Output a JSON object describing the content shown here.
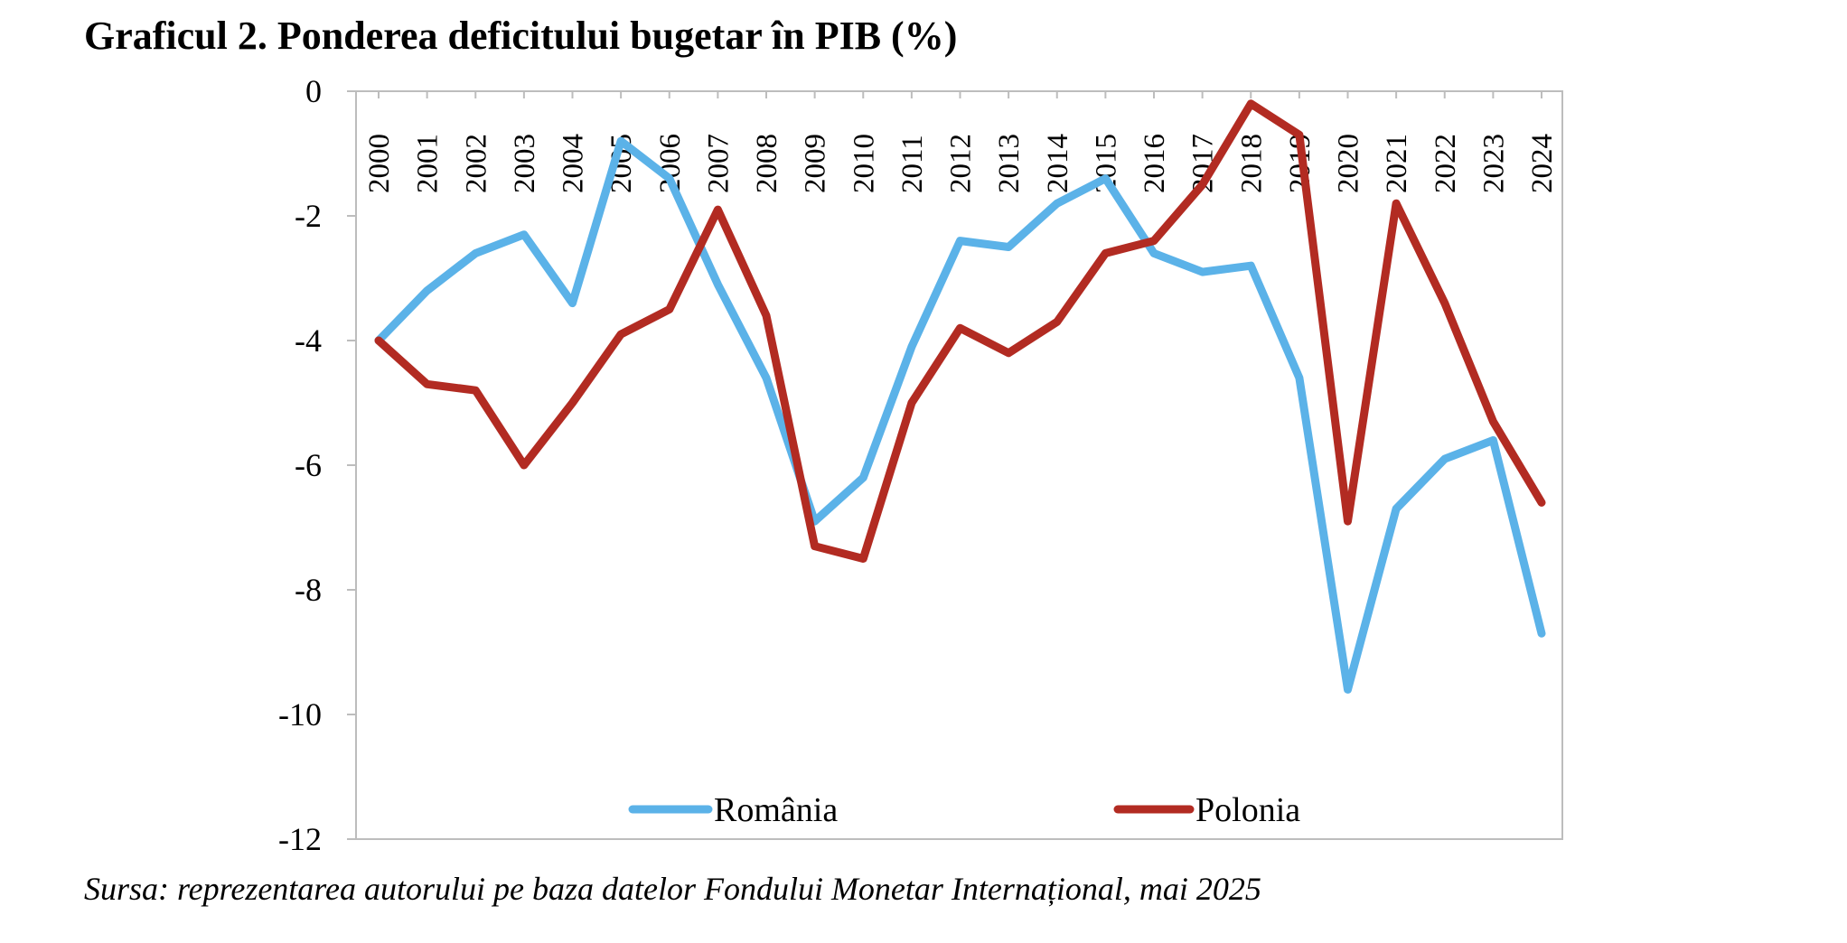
{
  "title": "Graficul 2. Ponderea deficitului bugetar în PIB (%)",
  "source": "Sursa: reprezentarea autorului pe baza datelor Fondului Monetar Internațional, mai 2025",
  "chart_data": {
    "type": "line",
    "title": "Graficul 2. Ponderea deficitului bugetar în PIB (%)",
    "xlabel": "",
    "ylabel": "",
    "categories": [
      "2000",
      "2001",
      "2002",
      "2003",
      "2004",
      "2005",
      "2006",
      "2007",
      "2008",
      "2009",
      "2010",
      "2011",
      "2012",
      "2013",
      "2014",
      "2015",
      "2016",
      "2017",
      "2018",
      "2019",
      "2020",
      "2021",
      "2022",
      "2023",
      "2024"
    ],
    "ylim": [
      -12,
      0
    ],
    "yticks": [
      0,
      -2,
      -4,
      -6,
      -8,
      -10,
      -12
    ],
    "x_axis_position": "top, at y = 0, labels rotated vertically",
    "grid": false,
    "legend_position": "bottom-inside",
    "series": [
      {
        "name": "România",
        "color": "#5BB2E8",
        "values": [
          -4.0,
          -3.2,
          -2.6,
          -2.3,
          -3.4,
          -0.8,
          -1.4,
          -3.1,
          -4.6,
          -6.9,
          -6.2,
          -4.1,
          -2.4,
          -2.5,
          -1.8,
          -1.4,
          -2.6,
          -2.9,
          -2.8,
          -4.6,
          -9.6,
          -6.7,
          -5.9,
          -5.6,
          -8.7
        ]
      },
      {
        "name": "Polonia",
        "color": "#B22B22",
        "values": [
          -4.0,
          -4.7,
          -4.8,
          -6.0,
          -5.0,
          -3.9,
          -3.5,
          -1.9,
          -3.6,
          -7.3,
          -7.5,
          -5.0,
          -3.8,
          -4.2,
          -3.7,
          -2.6,
          -2.4,
          -1.5,
          -0.2,
          -0.7,
          -6.9,
          -1.8,
          -3.4,
          -5.3,
          -6.6
        ]
      }
    ]
  }
}
